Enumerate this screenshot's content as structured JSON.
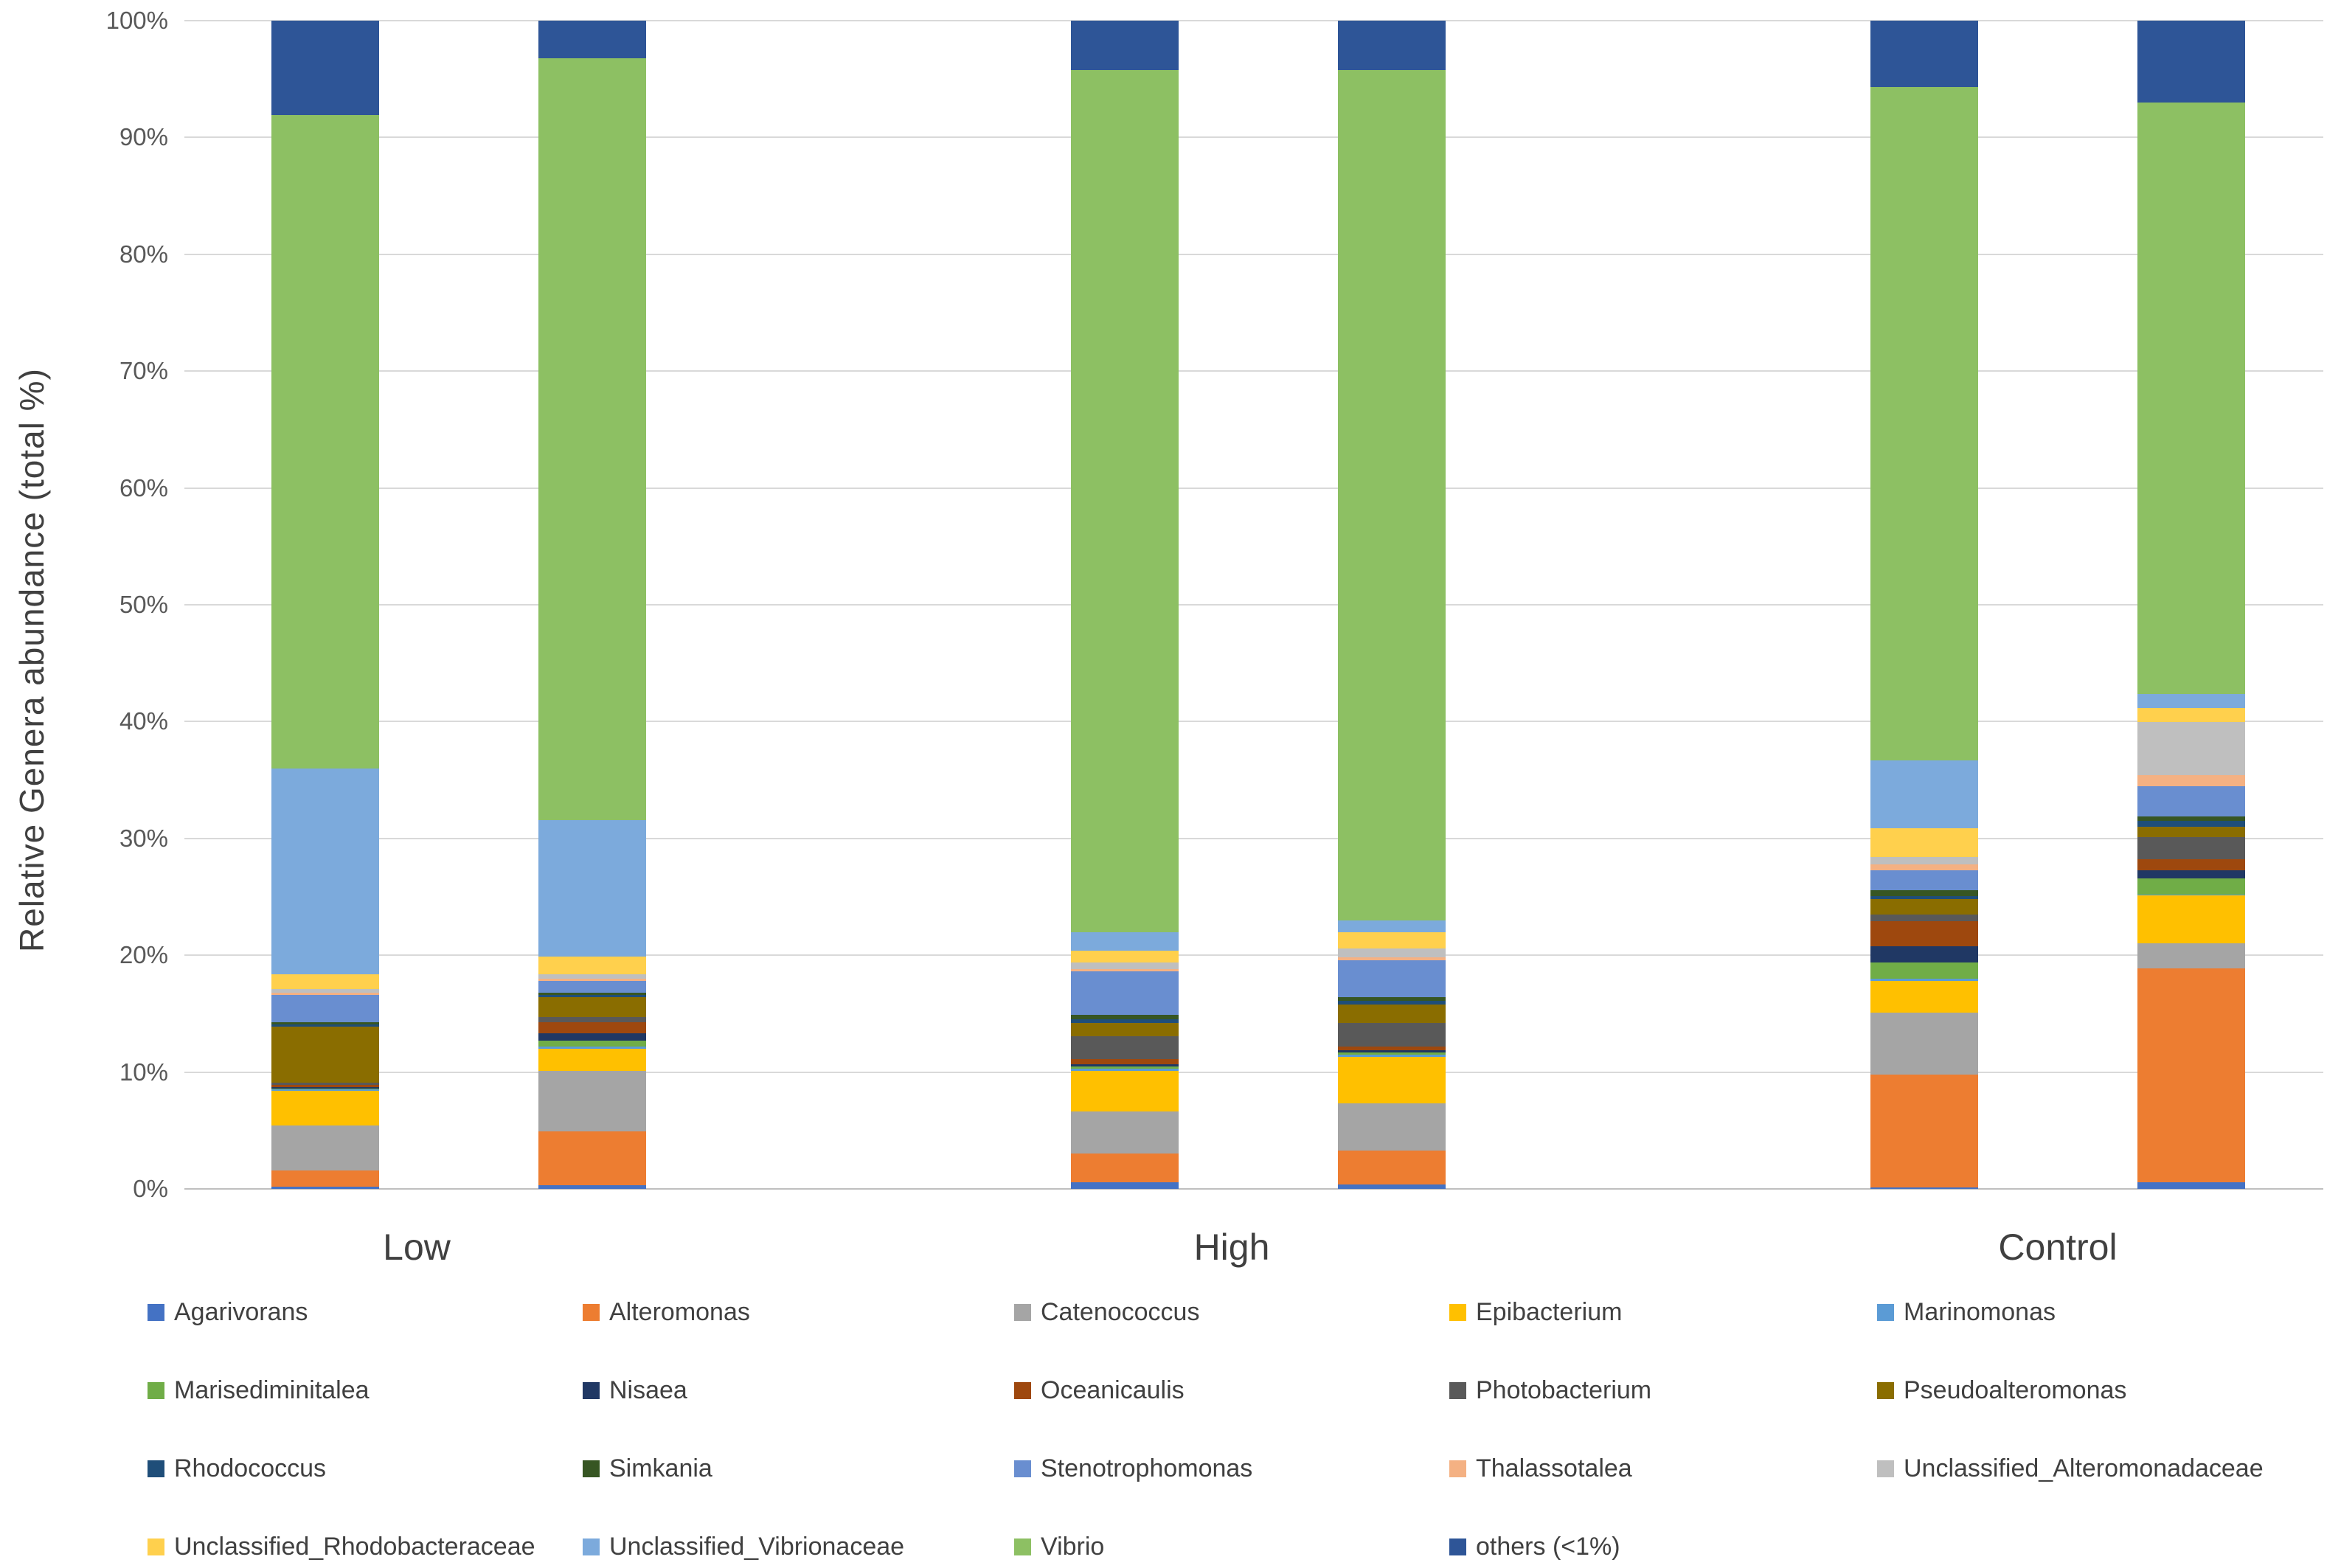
{
  "chart_data": {
    "type": "bar",
    "subtype": "stacked-percent",
    "title": "",
    "ylabel": "Relative Genera abundance (total %)",
    "xlabel": "",
    "ylim": [
      0,
      100
    ],
    "grid": true,
    "y_ticks": [
      "100%",
      "90%",
      "80%",
      "70%",
      "60%",
      "50%",
      "40%",
      "30%",
      "20%",
      "10%",
      "0%"
    ],
    "group_labels": [
      "Low",
      "High",
      "Control"
    ],
    "bars_per_group": 2,
    "legend_position": "bottom",
    "series": [
      {
        "name": "Agarivorans",
        "color": "#4472C4",
        "values": [
          0.2,
          0.3,
          0.6,
          0.4,
          0.1,
          0.6
        ]
      },
      {
        "name": "Alteromonas",
        "color": "#ED7D31",
        "values": [
          1.4,
          4.6,
          2.4,
          2.9,
          9.7,
          18.3
        ]
      },
      {
        "name": "Catenococcus",
        "color": "#A5A5A5",
        "values": [
          3.8,
          5.2,
          3.6,
          4.0,
          5.3,
          2.1
        ]
      },
      {
        "name": "Epibacterium",
        "color": "#FFC000",
        "values": [
          3.0,
          1.9,
          3.5,
          4.0,
          2.7,
          4.1
        ]
      },
      {
        "name": "Marinomonas",
        "color": "#5B9BD5",
        "values": [
          0.1,
          0.2,
          0.2,
          0.2,
          0.2,
          0.1
        ]
      },
      {
        "name": "Marisediminitalea",
        "color": "#70AD47",
        "values": [
          0.1,
          0.5,
          0.2,
          0.2,
          1.4,
          1.4
        ]
      },
      {
        "name": "Nisaea",
        "color": "#203864",
        "values": [
          0.1,
          0.6,
          0.2,
          0.2,
          1.4,
          0.7
        ]
      },
      {
        "name": "Oceanicaulis",
        "color": "#9E480E",
        "values": [
          0.2,
          1.0,
          0.4,
          0.3,
          2.1,
          0.9
        ]
      },
      {
        "name": "Photobacterium",
        "color": "#595959",
        "values": [
          0.2,
          0.4,
          2.0,
          2.0,
          0.6,
          1.9
        ]
      },
      {
        "name": "Pseudoalteromonas",
        "color": "#8A6D00",
        "values": [
          4.8,
          1.7,
          1.1,
          1.6,
          1.3,
          0.9
        ]
      },
      {
        "name": "Rhodococcus",
        "color": "#1F4E79",
        "values": [
          0.2,
          0.2,
          0.3,
          0.3,
          0.3,
          0.5
        ]
      },
      {
        "name": "Simkania",
        "color": "#375623",
        "values": [
          0.2,
          0.2,
          0.4,
          0.3,
          0.5,
          0.4
        ]
      },
      {
        "name": "Stenotrophomonas",
        "color": "#698ED0",
        "values": [
          2.3,
          1.0,
          3.7,
          3.2,
          1.7,
          2.6
        ]
      },
      {
        "name": "Thalassotalea",
        "color": "#F4B183",
        "values": [
          0.2,
          0.2,
          0.2,
          0.2,
          0.5,
          0.9
        ]
      },
      {
        "name": "Unclassified_Alteromonadaceae",
        "color": "#BFBFBF",
        "values": [
          0.3,
          0.4,
          0.6,
          0.8,
          0.6,
          4.6
        ]
      },
      {
        "name": "Unclassified_Rhodobacteraceae",
        "color": "#FFD04D",
        "values": [
          1.3,
          1.5,
          1.0,
          1.4,
          2.5,
          1.2
        ]
      },
      {
        "name": "Unclassified_Vibrionaceae",
        "color": "#7CAADC",
        "values": [
          17.6,
          11.7,
          1.6,
          1.0,
          5.8,
          1.2
        ]
      },
      {
        "name": "Vibrio",
        "color": "#8DC063",
        "values": [
          55.9,
          65.2,
          73.8,
          72.8,
          57.6,
          50.6
        ]
      },
      {
        "name": "others (<1%)",
        "color": "#2E5597",
        "values": [
          8.1,
          3.2,
          4.2,
          4.2,
          5.7,
          7.0
        ]
      }
    ]
  }
}
